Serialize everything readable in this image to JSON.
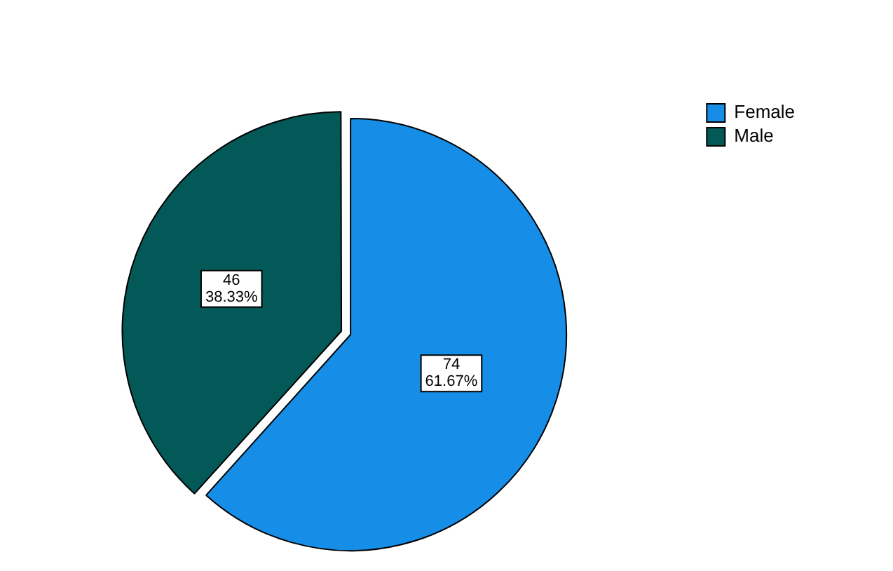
{
  "chart_data": {
    "type": "pie",
    "categories": [
      "Female",
      "Male"
    ],
    "values": [
      74,
      46
    ],
    "colors": [
      "#168ee8",
      "#035957"
    ],
    "value_labels": [
      "74\n61.67%",
      "46\n38.33%"
    ],
    "legend": "top right"
  }
}
